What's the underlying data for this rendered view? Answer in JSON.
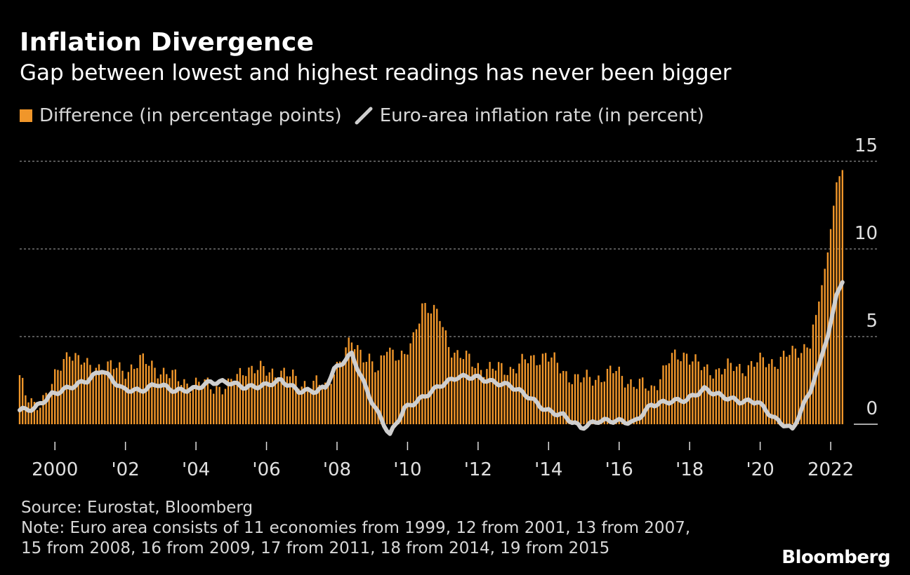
{
  "header": {
    "title": "Inflation Divergence",
    "subtitle": "Gap between lowest and highest readings has never been bigger"
  },
  "legend": [
    {
      "label": "Difference (in percentage points)",
      "color": "#f0962a",
      "shape": "square"
    },
    {
      "label": "Euro-area inflation rate (in percent)",
      "color": "#cfcfcf",
      "shape": "line"
    }
  ],
  "footer": {
    "source": "Source: Eurostat, Bloomberg",
    "note_line1": "Note: Euro area consists of 11 economies from 1999, 12 from 2001, 13 from 2007,",
    "note_line2": "15 from 2008, 16 from 2009, 17 from 2011, 18 from 2014, 19 from 2015"
  },
  "branding": {
    "logo": "Bloomberg"
  },
  "chart_data": {
    "type": "bar+line",
    "x_start": "1999-01",
    "x_end": "2022-05",
    "ylim": [
      -1,
      15
    ],
    "yticks": [
      0,
      5,
      10,
      15
    ],
    "ytick_labels": [
      "0",
      "5",
      "10",
      "15"
    ],
    "xtick_years": [
      2000,
      2002,
      2004,
      2006,
      2008,
      2010,
      2012,
      2014,
      2016,
      2018,
      2020,
      2022
    ],
    "xtick_labels": [
      "2000",
      "'02",
      "'04",
      "'06",
      "'08",
      "'10",
      "'12",
      "'14",
      "'16",
      "'18",
      "'20",
      "2022"
    ],
    "colors": {
      "bars": "#f0962a",
      "line": "#cfcfcf",
      "grid": "#8a8a8a"
    },
    "difference_keypoints": [
      [
        "1999-01",
        2.8
      ],
      [
        "1999-03",
        1.5
      ],
      [
        "1999-06",
        1.0
      ],
      [
        "1999-12",
        2.2
      ],
      [
        "2000-06",
        4.3
      ],
      [
        "2000-12",
        3.2
      ],
      [
        "2001-06",
        3.4
      ],
      [
        "2001-12",
        3.0
      ],
      [
        "2002-06",
        3.6
      ],
      [
        "2002-12",
        3.2
      ],
      [
        "2003-06",
        2.6
      ],
      [
        "2003-12",
        2.3
      ],
      [
        "2004-06",
        2.2
      ],
      [
        "2004-12",
        2.1
      ],
      [
        "2005-06",
        3.3
      ],
      [
        "2005-12",
        3.0
      ],
      [
        "2006-06",
        3.0
      ],
      [
        "2006-12",
        2.4
      ],
      [
        "2007-06",
        2.3
      ],
      [
        "2007-09",
        2.0
      ],
      [
        "2007-12",
        3.2
      ],
      [
        "2008-06",
        4.6
      ],
      [
        "2008-12",
        3.8
      ],
      [
        "2009-03",
        2.8
      ],
      [
        "2009-06",
        4.5
      ],
      [
        "2009-12",
        3.7
      ],
      [
        "2010-03",
        4.8
      ],
      [
        "2010-06",
        7.0
      ],
      [
        "2010-12",
        6.0
      ],
      [
        "2011-03",
        4.6
      ],
      [
        "2011-06",
        4.0
      ],
      [
        "2011-12",
        3.4
      ],
      [
        "2012-06",
        3.1
      ],
      [
        "2012-12",
        3.2
      ],
      [
        "2013-06",
        3.6
      ],
      [
        "2013-12",
        4.0
      ],
      [
        "2014-06",
        3.0
      ],
      [
        "2014-12",
        2.5
      ],
      [
        "2015-06",
        2.7
      ],
      [
        "2015-12",
        3.0
      ],
      [
        "2016-06",
        2.3
      ],
      [
        "2016-12",
        2.0
      ],
      [
        "2017-06",
        3.6
      ],
      [
        "2017-12",
        4.1
      ],
      [
        "2018-06",
        3.0
      ],
      [
        "2018-12",
        3.2
      ],
      [
        "2019-06",
        3.2
      ],
      [
        "2019-12",
        3.5
      ],
      [
        "2020-06",
        3.6
      ],
      [
        "2020-12",
        4.0
      ],
      [
        "2021-06",
        4.7
      ],
      [
        "2021-09",
        7.0
      ],
      [
        "2021-12",
        9.8
      ],
      [
        "2022-03",
        13.8
      ],
      [
        "2022-05",
        14.5
      ]
    ],
    "inflation_keypoints": [
      [
        "1999-01",
        0.8
      ],
      [
        "1999-06",
        0.9
      ],
      [
        "1999-12",
        1.7
      ],
      [
        "2000-06",
        2.1
      ],
      [
        "2000-12",
        2.5
      ],
      [
        "2001-05",
        3.1
      ],
      [
        "2001-12",
        2.0
      ],
      [
        "2002-06",
        1.9
      ],
      [
        "2002-12",
        2.3
      ],
      [
        "2003-06",
        1.9
      ],
      [
        "2003-12",
        2.0
      ],
      [
        "2004-06",
        2.4
      ],
      [
        "2004-12",
        2.4
      ],
      [
        "2005-06",
        2.1
      ],
      [
        "2005-12",
        2.2
      ],
      [
        "2006-06",
        2.5
      ],
      [
        "2006-12",
        1.9
      ],
      [
        "2007-06",
        1.9
      ],
      [
        "2007-09",
        2.1
      ],
      [
        "2007-12",
        3.1
      ],
      [
        "2008-06",
        4.0
      ],
      [
        "2008-12",
        1.6
      ],
      [
        "2009-03",
        0.6
      ],
      [
        "2009-07",
        -0.6
      ],
      [
        "2009-12",
        0.9
      ],
      [
        "2010-06",
        1.5
      ],
      [
        "2010-12",
        2.2
      ],
      [
        "2011-06",
        2.7
      ],
      [
        "2011-12",
        2.7
      ],
      [
        "2012-06",
        2.4
      ],
      [
        "2012-12",
        2.2
      ],
      [
        "2013-06",
        1.6
      ],
      [
        "2013-12",
        0.8
      ],
      [
        "2014-06",
        0.5
      ],
      [
        "2014-12",
        -0.2
      ],
      [
        "2015-06",
        0.2
      ],
      [
        "2015-12",
        0.2
      ],
      [
        "2016-06",
        0.1
      ],
      [
        "2016-12",
        1.1
      ],
      [
        "2017-06",
        1.3
      ],
      [
        "2017-12",
        1.4
      ],
      [
        "2018-06",
        2.0
      ],
      [
        "2018-12",
        1.6
      ],
      [
        "2019-06",
        1.3
      ],
      [
        "2019-12",
        1.3
      ],
      [
        "2020-06",
        0.3
      ],
      [
        "2020-12",
        -0.3
      ],
      [
        "2021-06",
        1.9
      ],
      [
        "2021-09",
        3.4
      ],
      [
        "2021-12",
        5.0
      ],
      [
        "2022-03",
        7.4
      ],
      [
        "2022-05",
        8.1
      ]
    ]
  }
}
